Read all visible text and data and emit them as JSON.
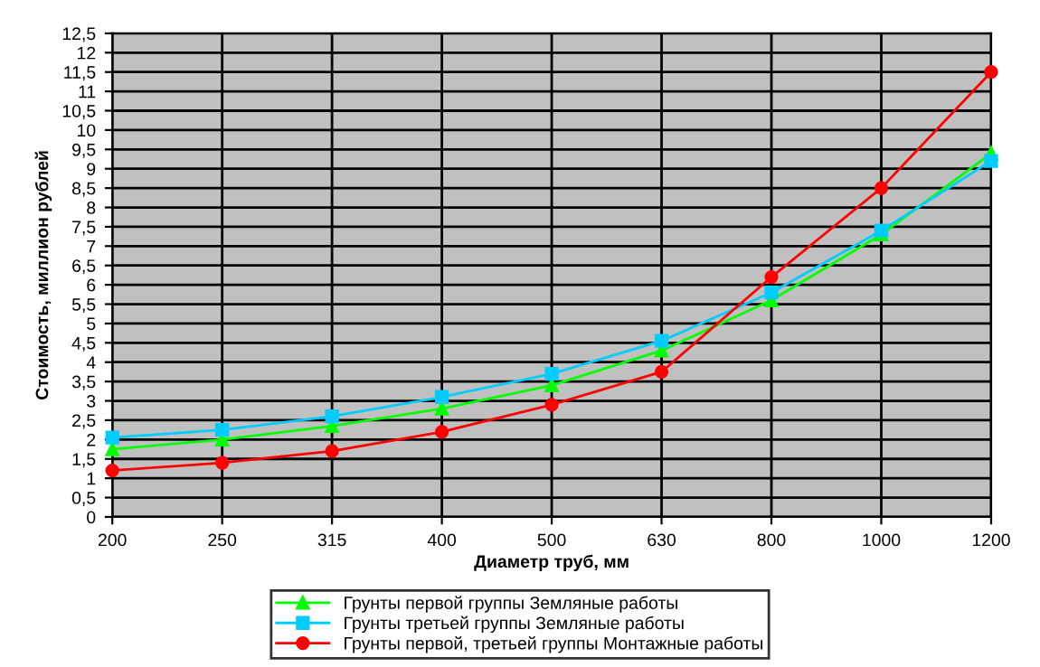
{
  "chart_data": {
    "type": "line",
    "xlabel": "Диаметр труб, мм",
    "ylabel": "Стоимость, миллион рублей",
    "categories": [
      "200",
      "250",
      "315",
      "400",
      "500",
      "630",
      "800",
      "1000",
      "1200"
    ],
    "series": [
      {
        "name": "Грунты первой группы Земляные работы",
        "color": "#00ff00",
        "marker": "triangle",
        "values": [
          1.75,
          2.0,
          2.35,
          2.8,
          3.4,
          4.3,
          5.6,
          7.3,
          9.4
        ]
      },
      {
        "name": "Грунты третьей группы Земляные работы",
        "color": "#00ccff",
        "marker": "square",
        "values": [
          2.05,
          2.25,
          2.6,
          3.1,
          3.7,
          4.55,
          5.8,
          7.4,
          9.2
        ]
      },
      {
        "name": "Грунты первой, третьей группы Монтажные работы",
        "color": "#ff0000",
        "marker": "circle",
        "values": [
          1.2,
          1.4,
          1.7,
          2.2,
          2.9,
          3.75,
          6.2,
          8.5,
          11.5
        ]
      }
    ],
    "ylim": [
      0,
      12.5
    ],
    "yticks": [
      0,
      {
        "value": 0.5,
        "label": "0,5"
      },
      1,
      {
        "value": 1.5,
        "label": "1,5"
      },
      2,
      {
        "value": 2.5,
        "label": "2,5"
      },
      3,
      {
        "value": 3.5,
        "label": "3,5"
      },
      4,
      {
        "value": 4.5,
        "label": "4,5"
      },
      5,
      {
        "value": 5.5,
        "label": "5,5"
      },
      6,
      {
        "value": 6.5,
        "label": "6,5"
      },
      7,
      {
        "value": 7.5,
        "label": "7,5"
      },
      8,
      {
        "value": 8.5,
        "label": "8,5"
      },
      9,
      {
        "value": 9.5,
        "label": "9,5"
      },
      10,
      {
        "value": 10.5,
        "label": "10,5"
      },
      11,
      {
        "value": 11.5,
        "label": "11,5"
      },
      12,
      {
        "value": 12.5,
        "label": "12,5"
      }
    ],
    "grid": true,
    "legend": "bottom"
  }
}
